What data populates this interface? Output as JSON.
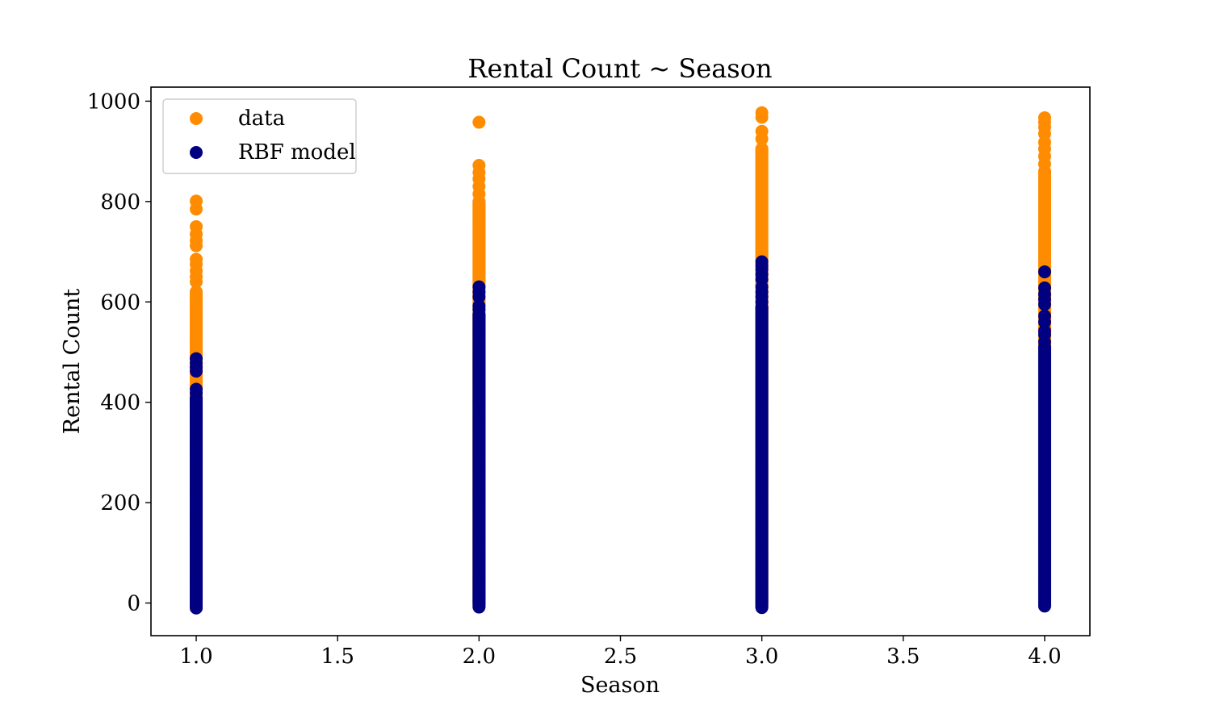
{
  "chart_data": {
    "type": "scatter",
    "title": "Rental Count ~ Season",
    "xlabel": "Season",
    "ylabel": "Rental Count",
    "xlim": [
      0.84,
      4.16
    ],
    "ylim": [
      -65,
      1028
    ],
    "xticks": [
      1.0,
      1.5,
      2.0,
      2.5,
      3.0,
      3.5,
      4.0
    ],
    "xtick_labels": [
      "1.0",
      "1.5",
      "2.0",
      "2.5",
      "3.0",
      "3.5",
      "4.0"
    ],
    "yticks": [
      0,
      200,
      400,
      600,
      800,
      1000
    ],
    "ytick_labels": [
      "0",
      "200",
      "400",
      "600",
      "800",
      "1000"
    ],
    "grid": false,
    "legend_position": "top-left",
    "series": [
      {
        "name": "data",
        "color": "#ff8c00",
        "points": [
          {
            "season": 1.0,
            "continuous_range": [
              1,
              620
            ],
            "outliers": [
              640,
              650,
              662,
              675,
              685,
              712,
              722,
              735,
              750,
              785,
              801
            ]
          },
          {
            "season": 2.0,
            "continuous_range": [
              1,
              800
            ],
            "outliers": [
              815,
              830,
              845,
              858,
              872,
              958
            ]
          },
          {
            "season": 3.0,
            "continuous_range": [
              1,
              905
            ],
            "outliers": [
              925,
              940,
              968,
              977
            ]
          },
          {
            "season": 4.0,
            "continuous_range": [
              1,
              860
            ],
            "outliers": [
              875,
              890,
              905,
              918,
              935,
              948,
              958,
              967
            ]
          }
        ]
      },
      {
        "name": "RBF model",
        "color": "#000080",
        "points": [
          {
            "season": 1.0,
            "continuous_range": [
              -10,
              408
            ],
            "outliers": [
              418,
              426,
              462,
              470,
              478,
              487
            ]
          },
          {
            "season": 2.0,
            "continuous_range": [
              -8,
              575
            ],
            "outliers": [
              585,
              592,
              610,
              620,
              630
            ]
          },
          {
            "season": 3.0,
            "continuous_range": [
              -9,
              590
            ],
            "outliers": [
              600,
              610,
              620,
              630,
              645,
              655,
              665,
              672,
              680
            ]
          },
          {
            "season": 4.0,
            "continuous_range": [
              -6,
              510
            ],
            "outliers": [
              520,
              535,
              542,
              560,
              572,
              595,
              605,
              615,
              628,
              660
            ]
          }
        ]
      }
    ]
  }
}
